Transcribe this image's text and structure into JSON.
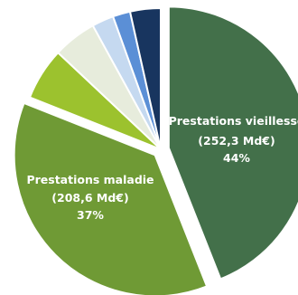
{
  "chart_data": {
    "type": "pie",
    "title": "",
    "slices": [
      {
        "name": "Prestations vieillesse",
        "amount": "(252,3 Md€)",
        "percent": "44%",
        "value": 44,
        "color": "#43704a",
        "exploded": true
      },
      {
        "name": "Prestations maladie",
        "amount": "(208,6 Md€)",
        "percent": "37%",
        "value": 37,
        "color": "#6f9a35",
        "exploded": true
      },
      {
        "name": "",
        "value": 6,
        "color": "#9cc22e",
        "exploded": false
      },
      {
        "name": "",
        "value": 5,
        "color": "#e7ecdc",
        "exploded": false
      },
      {
        "name": "",
        "value": 2.5,
        "color": "#c5d9f0",
        "exploded": false
      },
      {
        "name": "",
        "value": 2,
        "color": "#5b8fd6",
        "exploded": false
      },
      {
        "name": "",
        "value": 3.5,
        "color": "#18355f",
        "exploded": false
      }
    ]
  }
}
